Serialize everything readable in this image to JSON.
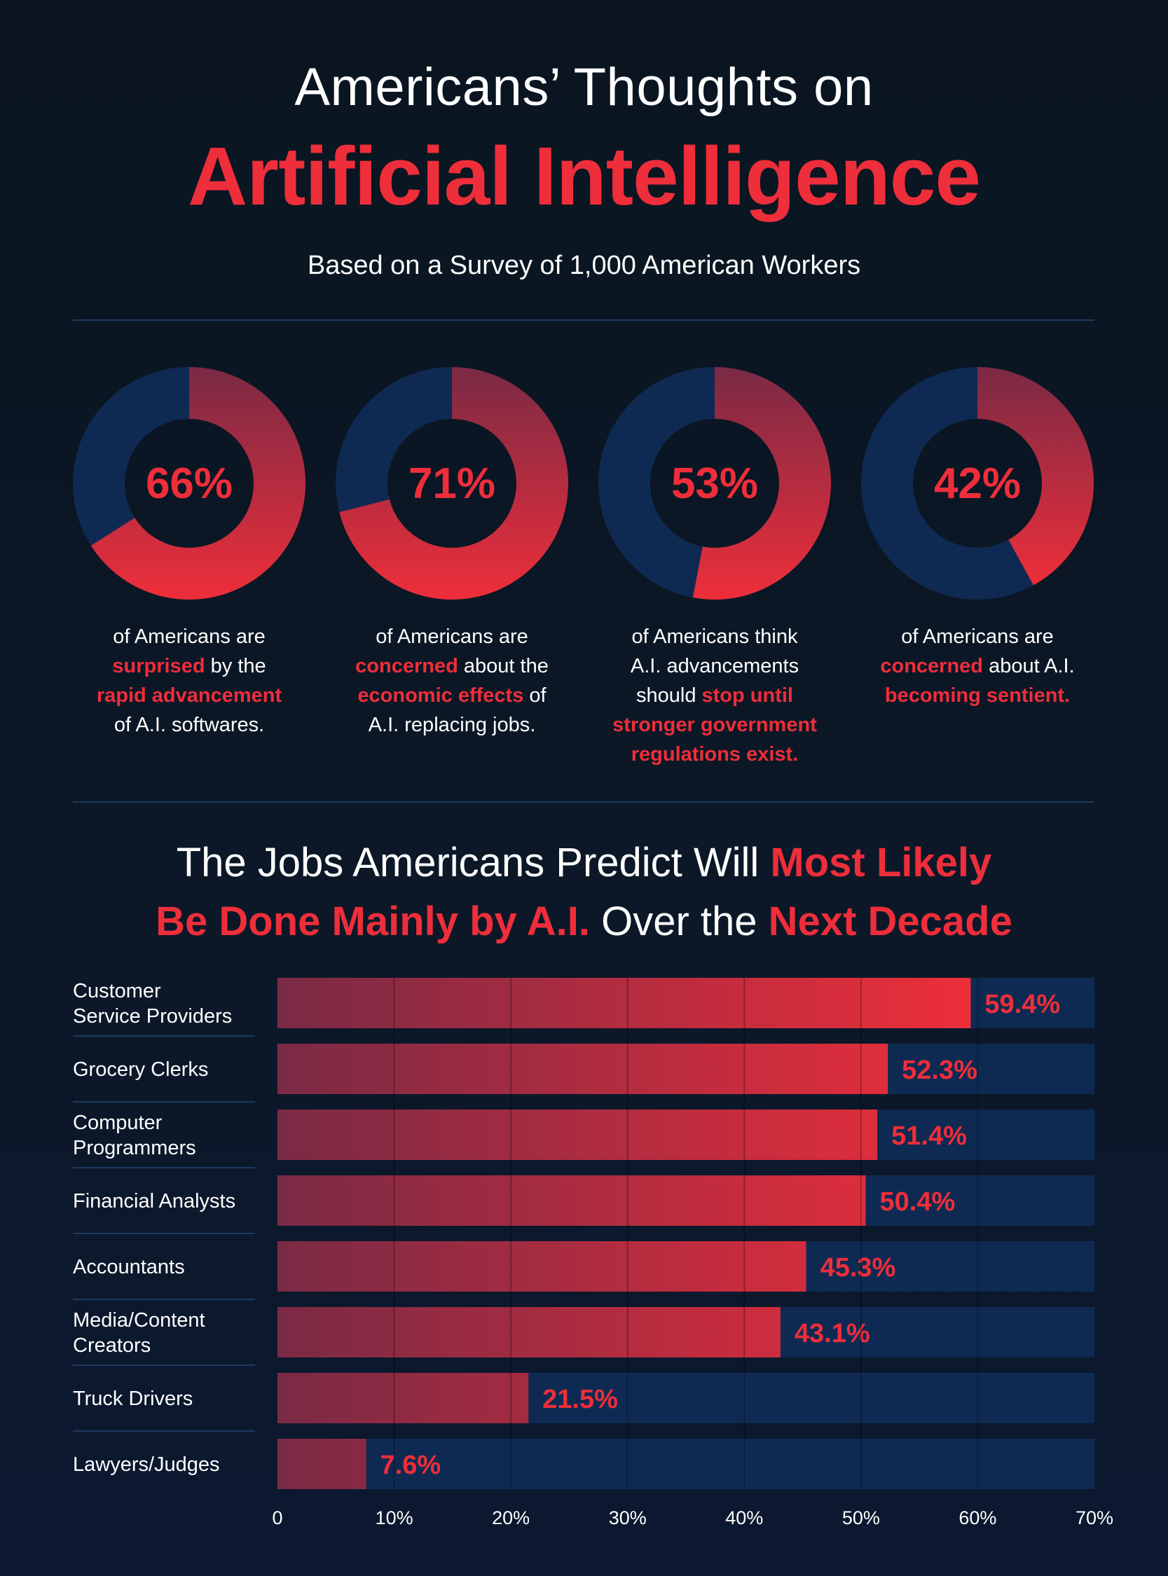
{
  "header": {
    "title_line1": "Americans’ Thoughts on",
    "title_line2": "Artificial Intelligence",
    "subtitle": "Based on a Survey of 1,000 American Workers"
  },
  "colors": {
    "accent_red": "#ee2e3a",
    "dark_red": "#7a2a45",
    "navy": "#0f2a52"
  },
  "donuts": [
    {
      "value": 66,
      "label": "66%",
      "caption": [
        {
          "text": "of Americans are ",
          "hl": false
        },
        {
          "br": true
        },
        {
          "text": "surprised",
          "hl": true
        },
        {
          "text": " by the",
          "hl": false
        },
        {
          "br": true
        },
        {
          "text": "rapid advancement",
          "hl": true
        },
        {
          "br": true
        },
        {
          "text": "of A.I. softwares.",
          "hl": false
        }
      ]
    },
    {
      "value": 71,
      "label": "71%",
      "caption": [
        {
          "text": "of Americans are",
          "hl": false
        },
        {
          "br": true
        },
        {
          "text": "concerned",
          "hl": true
        },
        {
          "text": " about the",
          "hl": false
        },
        {
          "br": true
        },
        {
          "text": "economic effects",
          "hl": true
        },
        {
          "text": " of",
          "hl": false
        },
        {
          "br": true
        },
        {
          "text": "A.I. replacing jobs.",
          "hl": false
        }
      ]
    },
    {
      "value": 53,
      "label": "53%",
      "caption": [
        {
          "text": "of Americans think",
          "hl": false
        },
        {
          "br": true
        },
        {
          "text": "A.I. advancements",
          "hl": false
        },
        {
          "br": true
        },
        {
          "text": "should ",
          "hl": false
        },
        {
          "text": "stop until",
          "hl": true
        },
        {
          "br": true
        },
        {
          "text": "stronger government",
          "hl": true
        },
        {
          "br": true
        },
        {
          "text": "regulations exist.",
          "hl": true
        }
      ]
    },
    {
      "value": 42,
      "label": "42%",
      "caption": [
        {
          "text": "of Americans are",
          "hl": false
        },
        {
          "br": true
        },
        {
          "text": "concerned",
          "hl": true
        },
        {
          "text": " about A.I.",
          "hl": false
        },
        {
          "br": true
        },
        {
          "text": "becoming sentient.",
          "hl": true
        }
      ]
    }
  ],
  "section": {
    "title_parts": [
      {
        "text": "The Jobs Americans Predict Will ",
        "hl": false
      },
      {
        "text": "Most Likely",
        "hl": true
      },
      {
        "br": true
      },
      {
        "text": "Be Done Mainly by A.I.",
        "hl": true
      },
      {
        "text": " Over the ",
        "hl": false
      },
      {
        "text": "Next Decade",
        "hl": true
      }
    ]
  },
  "chart_data": [
    {
      "type": "pie",
      "title": "Americans’ Thoughts on Artificial Intelligence",
      "categories": [
        "surprised by rapid advancement",
        "concerned about economic effects",
        "think A.I. should stop until regulations",
        "concerned about A.I. becoming sentient"
      ],
      "values": [
        66,
        71,
        53,
        42
      ]
    },
    {
      "type": "bar",
      "orientation": "horizontal",
      "title": "The Jobs Americans Predict Will Most Likely Be Done Mainly by A.I. Over the Next Decade",
      "categories": [
        "Customer\nService Providers",
        "Grocery Clerks",
        "Computer\nProgrammers",
        "Financial Analysts",
        "Accountants",
        "Media/Content\nCreators",
        "Truck Drivers",
        "Lawyers/Judges"
      ],
      "values": [
        59.4,
        52.3,
        51.4,
        50.4,
        45.3,
        43.1,
        21.5,
        7.6
      ],
      "value_labels": [
        "59.4%",
        "52.3%",
        "51.4%",
        "50.4%",
        "45.3%",
        "43.1%",
        "21.5%",
        "7.6%"
      ],
      "xlim": [
        0,
        70
      ],
      "xticks": [
        0,
        10,
        20,
        30,
        40,
        50,
        60,
        70
      ],
      "xtick_labels": [
        "0",
        "10%",
        "20%",
        "30%",
        "40%",
        "50%",
        "60%",
        "70%"
      ],
      "grid": true
    }
  ]
}
